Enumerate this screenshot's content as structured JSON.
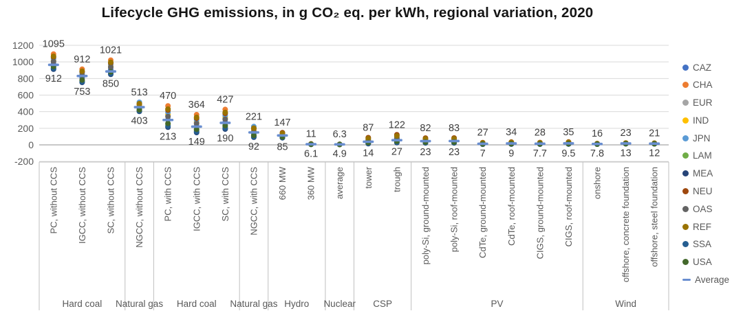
{
  "title": "Lifecycle GHG emissions, in g CO₂ eq. per kWh, regional variation, 2020",
  "colors": {
    "gridline": "#D9D9D9",
    "zero_axis": "#A6A6A6",
    "divider": "#BFBFBF",
    "tick_text": "#595959",
    "category_text": "#595959",
    "group_text": "#595959",
    "data_label_text": "#3F3F3F",
    "title_text": "#151515",
    "average_dash": "#698ED0"
  },
  "chart_data": {
    "type": "scatter",
    "title": "Lifecycle GHG emissions, in g CO₂ eq. per kWh, regional variation, 2020",
    "ylim": [
      -200,
      1200
    ],
    "yticks": [
      1200,
      1000,
      800,
      600,
      400,
      200,
      0,
      -200
    ],
    "grid": true,
    "legend": {
      "position": "right",
      "entries": [
        {
          "label": "CAZ",
          "color": "#4472C4",
          "marker": "dot"
        },
        {
          "label": "CHA",
          "color": "#ED7D31",
          "marker": "dot"
        },
        {
          "label": "EUR",
          "color": "#A5A5A5",
          "marker": "dot"
        },
        {
          "label": "IND",
          "color": "#FFC000",
          "marker": "dot"
        },
        {
          "label": "JPN",
          "color": "#5B9BD5",
          "marker": "dot"
        },
        {
          "label": "LAM",
          "color": "#70AD47",
          "marker": "dot"
        },
        {
          "label": "MEA",
          "color": "#264478",
          "marker": "dot"
        },
        {
          "label": "NEU",
          "color": "#9E480E",
          "marker": "dot"
        },
        {
          "label": "OAS",
          "color": "#636363",
          "marker": "dot"
        },
        {
          "label": "REF",
          "color": "#997300",
          "marker": "dot"
        },
        {
          "label": "SSA",
          "color": "#255E91",
          "marker": "dot"
        },
        {
          "label": "USA",
          "color": "#43682B",
          "marker": "dot"
        },
        {
          "label": "Average",
          "color": "#698ED0",
          "marker": "dash"
        }
      ]
    },
    "groups": [
      {
        "label": "Hard coal",
        "span": 3
      },
      {
        "label": "Natural gas",
        "span": 1
      },
      {
        "label": "Hard coal",
        "span": 3
      },
      {
        "label": "Natural gas",
        "span": 1
      },
      {
        "label": "Hydro",
        "span": 2
      },
      {
        "label": "Nuclear",
        "span": 1
      },
      {
        "label": "CSP",
        "span": 2
      },
      {
        "label": "PV",
        "span": 6
      },
      {
        "label": "Wind",
        "span": 3
      }
    ],
    "categories": [
      {
        "label": "PC, without CCS",
        "group": "Hard coal",
        "max": 1095,
        "min": 912,
        "average": 965,
        "max_label": "1095",
        "min_label": "912"
      },
      {
        "label": "IGCC, without CCS",
        "group": "Hard coal",
        "max": 912,
        "min": 753,
        "average": 830,
        "max_label": "912",
        "min_label": "753"
      },
      {
        "label": "SC, without CCS",
        "group": "Hard coal",
        "max": 1021,
        "min": 850,
        "average": 885,
        "max_label": "1021",
        "min_label": "850"
      },
      {
        "label": "NGCC, without CCS",
        "group": "Natural gas",
        "max": 513,
        "min": 403,
        "average": 455,
        "max_label": "513",
        "min_label": "403"
      },
      {
        "label": "PC, with CCS",
        "group": "Hard coal",
        "max": 470,
        "min": 213,
        "average": 300,
        "max_label": "470",
        "min_label": "213"
      },
      {
        "label": "IGCC, with CCS",
        "group": "Hard coal",
        "max": 364,
        "min": 149,
        "average": 220,
        "max_label": "364",
        "min_label": "149"
      },
      {
        "label": "SC, with CCS",
        "group": "Hard coal",
        "max": 427,
        "min": 190,
        "average": 265,
        "max_label": "427",
        "min_label": "190"
      },
      {
        "label": "NGCC, with CCS",
        "group": "Natural gas",
        "max": 221,
        "min": 92,
        "average": 150,
        "max_label": "221",
        "min_label": "92"
      },
      {
        "label": "660 MW",
        "group": "Hydro",
        "max": 147,
        "min": 85,
        "average": 113,
        "max_label": "147",
        "min_label": "85"
      },
      {
        "label": "360 MW",
        "group": "Hydro",
        "max": 11,
        "min": 6.1,
        "average": 8,
        "max_label": "11",
        "min_label": "6.1"
      },
      {
        "label": "average",
        "group": "Nuclear",
        "max": 6.3,
        "min": 4.9,
        "average": 5.5,
        "max_label": "6.3",
        "min_label": "4.9"
      },
      {
        "label": "tower",
        "group": "CSP",
        "max": 87,
        "min": 14,
        "average": 38,
        "max_label": "87",
        "min_label": "14"
      },
      {
        "label": "trough",
        "group": "CSP",
        "max": 122,
        "min": 27,
        "average": 56,
        "max_label": "122",
        "min_label": "27"
      },
      {
        "label": "poly-Si, ground-mounted",
        "group": "PV",
        "max": 82,
        "min": 23,
        "average": 45,
        "max_label": "82",
        "min_label": "23"
      },
      {
        "label": "poly-Si, roof-mounted",
        "group": "PV",
        "max": 83,
        "min": 23,
        "average": 46,
        "max_label": "83",
        "min_label": "23"
      },
      {
        "label": "CdTe, ground-mounted",
        "group": "PV",
        "max": 27,
        "min": 7,
        "average": 13,
        "max_label": "27",
        "min_label": "7"
      },
      {
        "label": "CdTe, roof-mounted",
        "group": "PV",
        "max": 34,
        "min": 9,
        "average": 17,
        "max_label": "34",
        "min_label": "9"
      },
      {
        "label": "CIGS, ground-mounted",
        "group": "PV",
        "max": 28,
        "min": 7.7,
        "average": 14,
        "max_label": "28",
        "min_label": "7.7"
      },
      {
        "label": "CIGS, roof-mounted",
        "group": "PV",
        "max": 35,
        "min": 9.5,
        "average": 18,
        "max_label": "35",
        "min_label": "9.5"
      },
      {
        "label": "onshore",
        "group": "Wind",
        "max": 16,
        "min": 7.8,
        "average": 11,
        "max_label": "16",
        "min_label": "7.8"
      },
      {
        "label": "offshore, concrete foundation",
        "group": "Wind",
        "max": 23,
        "min": 13,
        "average": 17,
        "max_label": "23",
        "min_label": "13"
      },
      {
        "label": "offshore, steel foundation",
        "group": "Wind",
        "max": 21,
        "min": 12,
        "average": 15,
        "max_label": "21",
        "min_label": "12"
      }
    ],
    "cluster_fractions": {
      "CAZ": 0.35,
      "CHA": 1.0,
      "EUR": 0.55,
      "IND": 0.6,
      "JPN": 0.7,
      "LAM": 0.12,
      "MEA": 0.0,
      "NEU": 0.8,
      "OAS": 0.5,
      "REF": 0.85,
      "SSA": 0.05,
      "USA": 0.18
    },
    "fraction_overrides": {
      "NGCC, without CCS": {
        "JPN": 1.0,
        "CHA": 0.75
      },
      "NGCC, with CCS": {
        "JPN": 1.0,
        "CHA": 0.8
      },
      "660 MW": {
        "NEU": 1.0,
        "CHA": 0.55
      },
      "360 MW": {
        "NEU": 1.0
      },
      "average": {
        "NEU": 1.0
      },
      "tower": {
        "NEU": 1.0,
        "CHA": 0.5
      },
      "trough": {
        "NEU": 1.0,
        "CHA": 0.5
      },
      "poly-Si, ground-mounted": {
        "NEU": 1.0,
        "CHA": 0.45
      },
      "poly-Si, roof-mounted": {
        "NEU": 1.0,
        "CHA": 0.45
      },
      "CdTe, ground-mounted": {
        "NEU": 1.0,
        "CHA": 0.45
      },
      "CdTe, roof-mounted": {
        "NEU": 1.0,
        "CHA": 0.45
      },
      "CIGS, ground-mounted": {
        "NEU": 1.0,
        "CHA": 0.45
      },
      "CIGS, roof-mounted": {
        "NEU": 1.0,
        "CHA": 0.45
      }
    }
  }
}
